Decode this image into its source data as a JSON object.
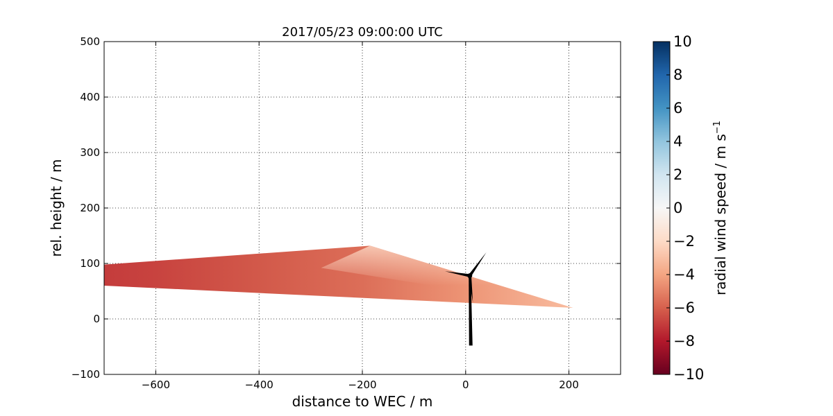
{
  "chart_data": {
    "type": "heatmap",
    "title": "2017/05/23 09:00:00 UTC",
    "xlabel": "distance to WEC / m",
    "ylabel": "rel. height / m",
    "xlim": [
      -700,
      300
    ],
    "ylim": [
      -100,
      500
    ],
    "xticks": [
      -600,
      -400,
      -200,
      0,
      200
    ],
    "yticks": [
      -100,
      0,
      100,
      200,
      300,
      400,
      500
    ],
    "x_tick_labels": [
      "−600",
      "−400",
      "−200",
      "0",
      "200"
    ],
    "y_tick_labels": [
      "−100",
      "0",
      "100",
      "200",
      "300",
      "400",
      "500"
    ],
    "grid": true,
    "scan_sector": {
      "outline": [
        [
          -700,
          98
        ],
        [
          -185,
          132
        ],
        [
          208,
          20
        ],
        [
          -700,
          60
        ]
      ],
      "speed_profile": [
        {
          "x": -700,
          "value": -7.0
        },
        {
          "x": -600,
          "value": -6.8
        },
        {
          "x": -400,
          "value": -6.2
        },
        {
          "x": -200,
          "value": -5.6
        },
        {
          "x": 0,
          "value": -4.5
        },
        {
          "x": 200,
          "value": -3.2
        }
      ],
      "upper_edge_value": -2.0
    },
    "turbine": {
      "hub": [
        8,
        78
      ],
      "tower_base": [
        10,
        -48
      ],
      "blade_tips": [
        [
          40,
          120
        ],
        [
          -40,
          86
        ],
        [
          14,
          30
        ]
      ]
    },
    "colorbar": {
      "label": "radial wind speed / m s",
      "label_superscript": "−1",
      "vmin": -10,
      "vmax": 10,
      "ticks": [
        -10,
        -8,
        -6,
        -4,
        -2,
        0,
        2,
        4,
        6,
        8,
        10
      ],
      "tick_labels": [
        "−10",
        "−8",
        "−6",
        "−4",
        "−2",
        "0",
        "2",
        "4",
        "6",
        "8",
        "10"
      ],
      "colormap": "RdBu",
      "stops": [
        "#67001f",
        "#b2182b",
        "#d6604d",
        "#f4a582",
        "#fddbc7",
        "#f7f7f7",
        "#d1e5f0",
        "#92c5de",
        "#4393c3",
        "#2166ac",
        "#053061"
      ]
    }
  }
}
